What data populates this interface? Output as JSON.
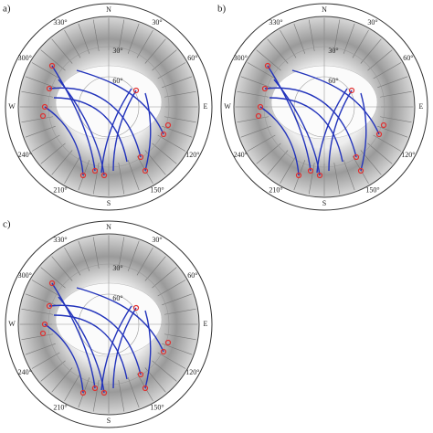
{
  "panels": [
    {
      "label": "a)"
    },
    {
      "label": "b)"
    },
    {
      "label": "c)"
    }
  ],
  "azimuth_labels": [
    "N",
    "30°",
    "60°",
    "E",
    "120°",
    "150°",
    "S",
    "210°",
    "240°",
    "W",
    "300°",
    "330°"
  ],
  "elevation_labels": [
    "30°",
    "60°"
  ]
}
